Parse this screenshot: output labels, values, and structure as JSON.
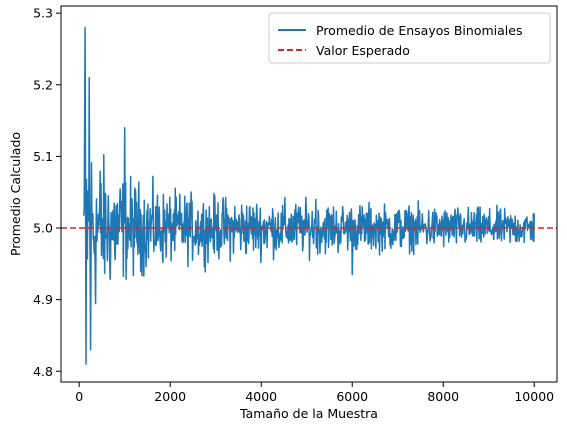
{
  "chart_data": {
    "type": "line",
    "title": "",
    "xlabel": "Tamaño de la Muestra",
    "ylabel": "Promedio Calculado",
    "xlim": [
      -400,
      10500
    ],
    "ylim": [
      4.785,
      5.31
    ],
    "x_ticks": [
      0,
      2000,
      4000,
      6000,
      8000,
      10000
    ],
    "y_ticks": [
      4.8,
      4.9,
      5.0,
      5.1,
      5.2,
      5.3
    ],
    "x_tick_labels": [
      "0",
      "2000",
      "4000",
      "6000",
      "8000",
      "10000"
    ],
    "y_tick_labels": [
      "4.8",
      "4.9",
      "5.0",
      "5.1",
      "5.2",
      "5.3"
    ],
    "grid": false,
    "legend_position": "upper right",
    "colors": {
      "series": "#1f77b4",
      "reference": "#d62728"
    },
    "series": [
      {
        "name": "Promedio de Ensayos Binomiales",
        "style": "solid",
        "x_start": 100,
        "x_end": 10000,
        "x_step": 10,
        "spread_envelope": {
          "x": [
            100,
            300,
            600,
            1000,
            1500,
            2000,
            3000,
            4000,
            6000,
            8000,
            10000
          ],
          "half_width": [
            0.2,
            0.13,
            0.09,
            0.075,
            0.06,
            0.05,
            0.045,
            0.04,
            0.035,
            0.03,
            0.025
          ]
        },
        "highlights": [
          {
            "x": 110,
            "y": 5.03
          },
          {
            "x": 130,
            "y": 5.28
          },
          {
            "x": 150,
            "y": 4.81
          },
          {
            "x": 220,
            "y": 5.21
          },
          {
            "x": 250,
            "y": 4.83
          },
          {
            "x": 1000,
            "y": 5.14
          },
          {
            "x": 5200,
            "y": 5.04
          },
          {
            "x": 6000,
            "y": 4.935
          },
          {
            "x": 10000,
            "y": 5.02
          }
        ]
      },
      {
        "name": "Valor Esperado",
        "style": "dashed",
        "y": 5.0
      }
    ]
  }
}
